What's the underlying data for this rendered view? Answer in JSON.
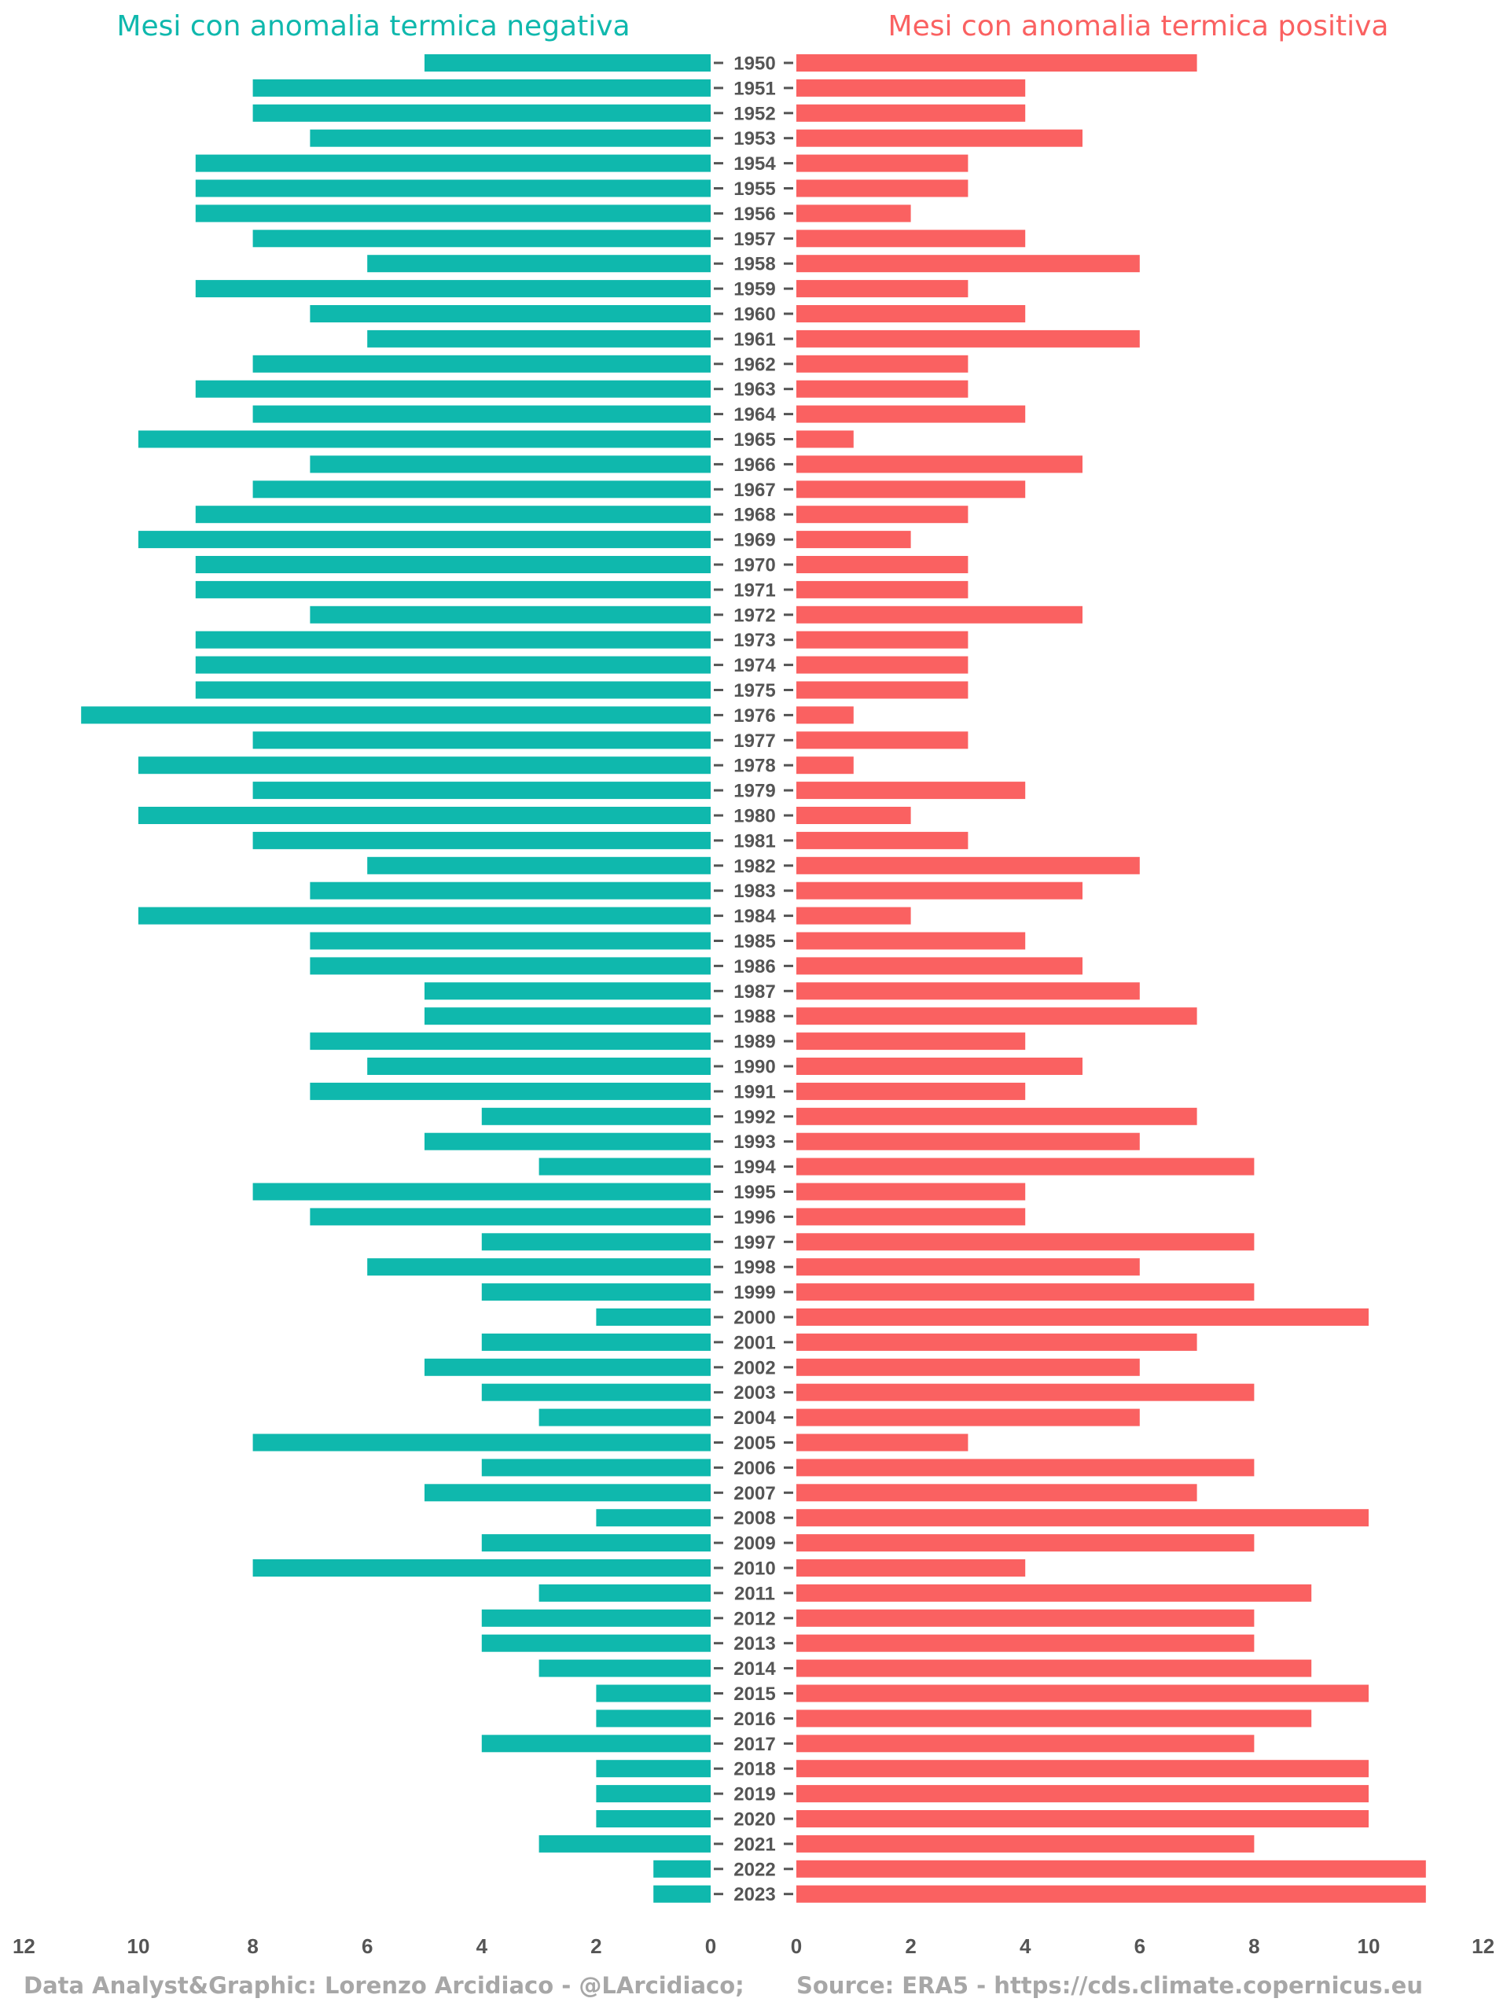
{
  "chart_data": {
    "type": "bar",
    "orientation": "horizontal-diverging",
    "left_title": "Mesi con anomalia termica negativa",
    "right_title": "Mesi con anomalia termica positiva",
    "credit_left": "Data Analyst&Graphic: Lorenzo Arcidiaco - @LArcidiaco;",
    "credit_right": "Source: ERA5 - https://cds.climate.copernicus.eu",
    "colors": {
      "negative": "#0fb8ad",
      "positive": "#fa6161",
      "text": "#555555",
      "credit": "#a7a7a7"
    },
    "left_ticks": [
      "12",
      "10",
      "8",
      "6",
      "4",
      "2",
      "0"
    ],
    "right_ticks": [
      "0",
      "2",
      "4",
      "6",
      "8",
      "10",
      "12"
    ],
    "xlim": [
      0,
      12
    ],
    "grid": false,
    "categories": [
      "1950",
      "1951",
      "1952",
      "1953",
      "1954",
      "1955",
      "1956",
      "1957",
      "1958",
      "1959",
      "1960",
      "1961",
      "1962",
      "1963",
      "1964",
      "1965",
      "1966",
      "1967",
      "1968",
      "1969",
      "1970",
      "1971",
      "1972",
      "1973",
      "1974",
      "1975",
      "1976",
      "1977",
      "1978",
      "1979",
      "1980",
      "1981",
      "1982",
      "1983",
      "1984",
      "1985",
      "1986",
      "1987",
      "1988",
      "1989",
      "1990",
      "1991",
      "1992",
      "1993",
      "1994",
      "1995",
      "1996",
      "1997",
      "1998",
      "1999",
      "2000",
      "2001",
      "2002",
      "2003",
      "2004",
      "2005",
      "2006",
      "2007",
      "2008",
      "2009",
      "2010",
      "2011",
      "2012",
      "2013",
      "2014",
      "2015",
      "2016",
      "2017",
      "2018",
      "2019",
      "2020",
      "2021",
      "2022",
      "2023"
    ],
    "series": [
      {
        "name": "Mesi con anomalia termica negativa",
        "values": [
          5,
          8,
          8,
          7,
          9,
          9,
          9,
          8,
          6,
          9,
          7,
          6,
          8,
          9,
          8,
          10,
          7,
          8,
          9,
          10,
          9,
          9,
          7,
          9,
          9,
          9,
          11,
          8,
          10,
          8,
          10,
          8,
          6,
          7,
          10,
          7,
          7,
          5,
          5,
          7,
          6,
          7,
          4,
          5,
          3,
          8,
          7,
          4,
          6,
          4,
          2,
          4,
          5,
          4,
          3,
          8,
          4,
          5,
          2,
          4,
          8,
          3,
          4,
          4,
          3,
          2,
          2,
          4,
          2,
          2,
          2,
          3,
          1,
          1
        ]
      },
      {
        "name": "Mesi con anomalia termica positiva",
        "values": [
          7,
          4,
          4,
          5,
          3,
          3,
          2,
          4,
          6,
          3,
          4,
          6,
          3,
          3,
          4,
          1,
          5,
          4,
          3,
          2,
          3,
          3,
          5,
          3,
          3,
          3,
          1,
          3,
          1,
          4,
          2,
          3,
          6,
          5,
          2,
          4,
          5,
          6,
          7,
          4,
          5,
          4,
          7,
          6,
          8,
          4,
          4,
          8,
          6,
          8,
          10,
          7,
          6,
          8,
          6,
          3,
          8,
          7,
          10,
          8,
          4,
          9,
          8,
          8,
          9,
          10,
          9,
          8,
          10,
          10,
          10,
          8,
          11,
          11
        ]
      }
    ]
  }
}
